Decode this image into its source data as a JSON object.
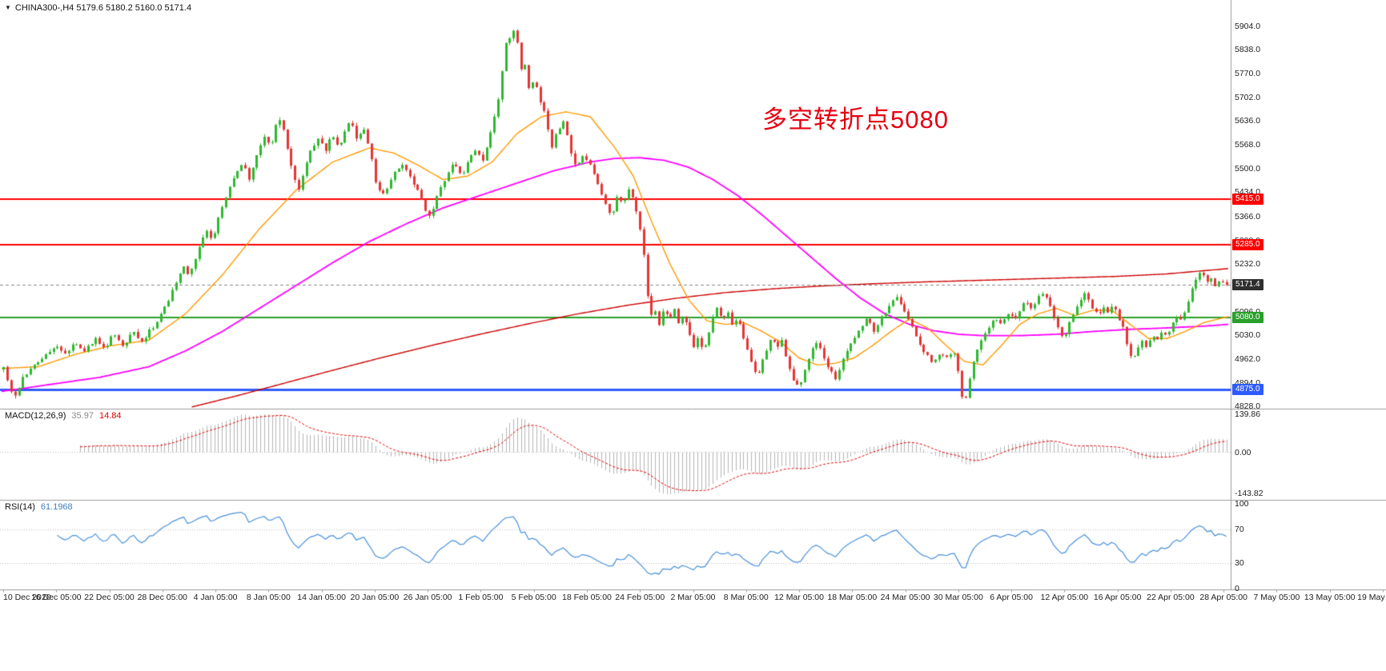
{
  "header": {
    "text": "CHINA300-,H4 5179.6 5180.2 5160.0 5171.4"
  },
  "annotation": {
    "text": "多空转折点5080",
    "color": "#e60012"
  },
  "chart_data": {
    "type": "candlestick",
    "symbol": "CHINA300-",
    "timeframe": "H4",
    "ohlc_display": {
      "open": 5179.6,
      "high": 5180.2,
      "low": 5160.0,
      "close": 5171.4
    },
    "price_axis": {
      "max": 5904.0,
      "min": 4828.0,
      "ticks": [
        "5904.0",
        "5838.0",
        "5770.0",
        "5702.0",
        "5636.0",
        "5568.0",
        "5500.0",
        "5434.0",
        "5366.0",
        "5298.0",
        "5232.0",
        "5164.0",
        "5096.0",
        "5030.0",
        "4962.0",
        "4894.0",
        "4828.0"
      ]
    },
    "time_axis": {
      "labels": [
        "10 Dec 2020",
        "16 Dec 05:00",
        "22 Dec 05:00",
        "28 Dec 05:00",
        "4 Jan 05:00",
        "8 Jan 05:00",
        "14 Jan 05:00",
        "20 Jan 05:00",
        "26 Jan 05:00",
        "1 Feb 05:00",
        "5 Feb 05:00",
        "18 Feb 05:00",
        "24 Feb 05:00",
        "2 Mar 05:00",
        "8 Mar 05:00",
        "12 Mar 05:00",
        "18 Mar 05:00",
        "24 Mar 05:00",
        "30 Mar 05:00",
        "6 Apr 05:00",
        "12 Apr 05:00",
        "16 Apr 05:00",
        "22 Apr 05:00",
        "28 Apr 05:00",
        "7 May 05:00",
        "13 May 05:00",
        "19 May 05:00"
      ]
    },
    "horizontal_lines": [
      {
        "price": 5415.0,
        "label": "5415.0",
        "color": "#ff0000",
        "width": 2
      },
      {
        "price": 5285.0,
        "label": "5285.0",
        "color": "#ff0000",
        "width": 2
      },
      {
        "price": 5080.0,
        "label": "5080.0",
        "color": "#2aa02a",
        "width": 2
      },
      {
        "price": 4875.0,
        "label": "4875.0",
        "color": "#2e5bff",
        "width": 3
      }
    ],
    "current_price": {
      "value": 5171.4,
      "label": "5171.4",
      "tag_color": "#2f2f2f"
    },
    "candle_colors": {
      "up": "#2eb82e",
      "down": "#e53535"
    },
    "bars": 320,
    "price_path": [
      [
        0.0,
        4935
      ],
      [
        0.005,
        4880
      ],
      [
        0.009,
        4850
      ],
      [
        0.015,
        4905
      ],
      [
        0.022,
        4930
      ],
      [
        0.03,
        4960
      ],
      [
        0.042,
        5000
      ],
      [
        0.05,
        4975
      ],
      [
        0.058,
        5010
      ],
      [
        0.066,
        4985
      ],
      [
        0.075,
        5020
      ],
      [
        0.082,
        4990
      ],
      [
        0.09,
        5035
      ],
      [
        0.098,
        5000
      ],
      [
        0.106,
        5040
      ],
      [
        0.113,
        5010
      ],
      [
        0.12,
        5045
      ],
      [
        0.124,
        5060
      ],
      [
        0.132,
        5110
      ],
      [
        0.14,
        5170
      ],
      [
        0.147,
        5230
      ],
      [
        0.152,
        5195
      ],
      [
        0.158,
        5260
      ],
      [
        0.165,
        5330
      ],
      [
        0.171,
        5300
      ],
      [
        0.178,
        5390
      ],
      [
        0.184,
        5440
      ],
      [
        0.19,
        5490
      ],
      [
        0.196,
        5520
      ],
      [
        0.201,
        5470
      ],
      [
        0.206,
        5530
      ],
      [
        0.21,
        5565
      ],
      [
        0.214,
        5600
      ],
      [
        0.218,
        5555
      ],
      [
        0.222,
        5620
      ],
      [
        0.227,
        5640
      ],
      [
        0.231,
        5580
      ],
      [
        0.236,
        5490
      ],
      [
        0.241,
        5440
      ],
      [
        0.246,
        5500
      ],
      [
        0.252,
        5560
      ],
      [
        0.258,
        5590
      ],
      [
        0.263,
        5545
      ],
      [
        0.268,
        5600
      ],
      [
        0.274,
        5555
      ],
      [
        0.279,
        5610
      ],
      [
        0.284,
        5640
      ],
      [
        0.289,
        5580
      ],
      [
        0.294,
        5615
      ],
      [
        0.299,
        5560
      ],
      [
        0.305,
        5450
      ],
      [
        0.311,
        5425
      ],
      [
        0.318,
        5480
      ],
      [
        0.325,
        5515
      ],
      [
        0.332,
        5480
      ],
      [
        0.34,
        5430
      ],
      [
        0.346,
        5375
      ],
      [
        0.349,
        5360
      ],
      [
        0.355,
        5430
      ],
      [
        0.362,
        5480
      ],
      [
        0.368,
        5525
      ],
      [
        0.374,
        5480
      ],
      [
        0.38,
        5520
      ],
      [
        0.386,
        5555
      ],
      [
        0.391,
        5520
      ],
      [
        0.396,
        5570
      ],
      [
        0.401,
        5640
      ],
      [
        0.405,
        5710
      ],
      [
        0.409,
        5810
      ],
      [
        0.412,
        5900
      ],
      [
        0.415,
        5855
      ],
      [
        0.418,
        5905
      ],
      [
        0.421,
        5835
      ],
      [
        0.424,
        5760
      ],
      [
        0.427,
        5800
      ],
      [
        0.43,
        5720
      ],
      [
        0.434,
        5765
      ],
      [
        0.438,
        5700
      ],
      [
        0.443,
        5650
      ],
      [
        0.448,
        5560
      ],
      [
        0.453,
        5610
      ],
      [
        0.458,
        5640
      ],
      [
        0.463,
        5560
      ],
      [
        0.468,
        5500
      ],
      [
        0.474,
        5545
      ],
      [
        0.48,
        5510
      ],
      [
        0.486,
        5455
      ],
      [
        0.492,
        5400
      ],
      [
        0.497,
        5365
      ],
      [
        0.502,
        5430
      ],
      [
        0.507,
        5400
      ],
      [
        0.512,
        5455
      ],
      [
        0.517,
        5380
      ],
      [
        0.522,
        5300
      ],
      [
        0.525,
        5210
      ],
      [
        0.527,
        5120
      ],
      [
        0.529,
        5085
      ],
      [
        0.532,
        5110
      ],
      [
        0.536,
        5060
      ],
      [
        0.54,
        5110
      ],
      [
        0.544,
        5070
      ],
      [
        0.548,
        5110
      ],
      [
        0.552,
        5060
      ],
      [
        0.556,
        5095
      ],
      [
        0.56,
        5040
      ],
      [
        0.564,
        4990
      ],
      [
        0.568,
        5030
      ],
      [
        0.572,
        4980
      ],
      [
        0.576,
        5030
      ],
      [
        0.58,
        5080
      ],
      [
        0.584,
        5110
      ],
      [
        0.588,
        5070
      ],
      [
        0.592,
        5100
      ],
      [
        0.596,
        5050
      ],
      [
        0.6,
        5080
      ],
      [
        0.604,
        5030
      ],
      [
        0.608,
        4990
      ],
      [
        0.612,
        4950
      ],
      [
        0.616,
        4910
      ],
      [
        0.62,
        4950
      ],
      [
        0.624,
        4990
      ],
      [
        0.628,
        5030
      ],
      [
        0.632,
        4990
      ],
      [
        0.636,
        5020
      ],
      [
        0.64,
        4960
      ],
      [
        0.645,
        4905
      ],
      [
        0.65,
        4880
      ],
      [
        0.655,
        4930
      ],
      [
        0.66,
        4980
      ],
      [
        0.665,
        5010
      ],
      [
        0.67,
        4970
      ],
      [
        0.675,
        4935
      ],
      [
        0.68,
        4905
      ],
      [
        0.685,
        4950
      ],
      [
        0.69,
        4990
      ],
      [
        0.695,
        5020
      ],
      [
        0.7,
        5045
      ],
      [
        0.706,
        5075
      ],
      [
        0.712,
        5040
      ],
      [
        0.718,
        5080
      ],
      [
        0.724,
        5110
      ],
      [
        0.73,
        5140
      ],
      [
        0.736,
        5100
      ],
      [
        0.742,
        5060
      ],
      [
        0.748,
        5010
      ],
      [
        0.754,
        4975
      ],
      [
        0.76,
        4950
      ],
      [
        0.766,
        4985
      ],
      [
        0.772,
        4960
      ],
      [
        0.776,
        4990
      ],
      [
        0.78,
        4940
      ],
      [
        0.783,
        4860
      ],
      [
        0.786,
        4840
      ],
      [
        0.789,
        4890
      ],
      [
        0.793,
        4950
      ],
      [
        0.797,
        5000
      ],
      [
        0.801,
        5020
      ],
      [
        0.806,
        5055
      ],
      [
        0.811,
        5080
      ],
      [
        0.816,
        5060
      ],
      [
        0.821,
        5090
      ],
      [
        0.826,
        5075
      ],
      [
        0.831,
        5100
      ],
      [
        0.836,
        5130
      ],
      [
        0.841,
        5100
      ],
      [
        0.846,
        5140
      ],
      [
        0.851,
        5155
      ],
      [
        0.855,
        5120
      ],
      [
        0.859,
        5080
      ],
      [
        0.863,
        5040
      ],
      [
        0.867,
        5025
      ],
      [
        0.871,
        5060
      ],
      [
        0.875,
        5095
      ],
      [
        0.88,
        5130
      ],
      [
        0.885,
        5150
      ],
      [
        0.89,
        5110
      ],
      [
        0.895,
        5085
      ],
      [
        0.899,
        5115
      ],
      [
        0.903,
        5095
      ],
      [
        0.907,
        5120
      ],
      [
        0.911,
        5085
      ],
      [
        0.915,
        5055
      ],
      [
        0.919,
        5000
      ],
      [
        0.923,
        4960
      ],
      [
        0.927,
        4985
      ],
      [
        0.931,
        5015
      ],
      [
        0.935,
        4995
      ],
      [
        0.939,
        5030
      ],
      [
        0.943,
        5010
      ],
      [
        0.947,
        5040
      ],
      [
        0.951,
        5025
      ],
      [
        0.955,
        5055
      ],
      [
        0.959,
        5080
      ],
      [
        0.963,
        5075
      ],
      [
        0.967,
        5110
      ],
      [
        0.971,
        5150
      ],
      [
        0.975,
        5190
      ],
      [
        0.979,
        5215
      ],
      [
        0.982,
        5195
      ],
      [
        0.985,
        5175
      ],
      [
        0.988,
        5190
      ],
      [
        0.991,
        5165
      ],
      [
        0.994,
        5180
      ],
      [
        0.997,
        5175
      ],
      [
        1.0,
        5171
      ]
    ],
    "moving_averages": [
      {
        "name": "ma-slow",
        "color": "#cc0000",
        "width": 1.4,
        "path": [
          [
            0.155,
            4826
          ],
          [
            0.19,
            4856
          ],
          [
            0.23,
            4893
          ],
          [
            0.27,
            4930
          ],
          [
            0.31,
            4966
          ],
          [
            0.35,
            5000
          ],
          [
            0.39,
            5032
          ],
          [
            0.43,
            5062
          ],
          [
            0.47,
            5090
          ],
          [
            0.51,
            5114
          ],
          [
            0.55,
            5134
          ],
          [
            0.59,
            5150
          ],
          [
            0.63,
            5161
          ],
          [
            0.67,
            5169
          ],
          [
            0.71,
            5175
          ],
          [
            0.75,
            5180
          ],
          [
            0.79,
            5184
          ],
          [
            0.83,
            5188
          ],
          [
            0.87,
            5192
          ],
          [
            0.91,
            5196
          ],
          [
            0.95,
            5203
          ],
          [
            1.0,
            5218
          ]
        ]
      },
      {
        "name": "ma-medium",
        "color": "#ff00ff",
        "width": 1.8,
        "path": [
          [
            0.0,
            4870
          ],
          [
            0.04,
            4890
          ],
          [
            0.08,
            4910
          ],
          [
            0.12,
            4940
          ],
          [
            0.15,
            4985
          ],
          [
            0.18,
            5040
          ],
          [
            0.21,
            5105
          ],
          [
            0.24,
            5170
          ],
          [
            0.27,
            5235
          ],
          [
            0.3,
            5295
          ],
          [
            0.33,
            5345
          ],
          [
            0.36,
            5390
          ],
          [
            0.39,
            5425
          ],
          [
            0.42,
            5460
          ],
          [
            0.45,
            5495
          ],
          [
            0.48,
            5520
          ],
          [
            0.5,
            5530
          ],
          [
            0.52,
            5532
          ],
          [
            0.54,
            5525
          ],
          [
            0.56,
            5505
          ],
          [
            0.58,
            5470
          ],
          [
            0.6,
            5425
          ],
          [
            0.62,
            5370
          ],
          [
            0.64,
            5310
          ],
          [
            0.66,
            5250
          ],
          [
            0.68,
            5190
          ],
          [
            0.7,
            5135
          ],
          [
            0.72,
            5090
          ],
          [
            0.74,
            5060
          ],
          [
            0.76,
            5042
          ],
          [
            0.78,
            5032
          ],
          [
            0.8,
            5028
          ],
          [
            0.83,
            5028
          ],
          [
            0.86,
            5032
          ],
          [
            0.89,
            5040
          ],
          [
            0.92,
            5046
          ],
          [
            0.95,
            5050
          ],
          [
            0.98,
            5055
          ],
          [
            1.0,
            5060
          ]
        ]
      },
      {
        "name": "ma-fast",
        "color": "#ff9900",
        "width": 1.4,
        "path": [
          [
            0.0,
            4935
          ],
          [
            0.03,
            4940
          ],
          [
            0.06,
            4975
          ],
          [
            0.09,
            5000
          ],
          [
            0.12,
            5015
          ],
          [
            0.15,
            5090
          ],
          [
            0.18,
            5200
          ],
          [
            0.21,
            5330
          ],
          [
            0.24,
            5440
          ],
          [
            0.27,
            5520
          ],
          [
            0.3,
            5560
          ],
          [
            0.32,
            5545
          ],
          [
            0.34,
            5510
          ],
          [
            0.36,
            5470
          ],
          [
            0.38,
            5480
          ],
          [
            0.4,
            5520
          ],
          [
            0.42,
            5600
          ],
          [
            0.44,
            5648
          ],
          [
            0.46,
            5662
          ],
          [
            0.48,
            5648
          ],
          [
            0.5,
            5560
          ],
          [
            0.515,
            5480
          ],
          [
            0.53,
            5350
          ],
          [
            0.545,
            5230
          ],
          [
            0.56,
            5130
          ],
          [
            0.575,
            5070
          ],
          [
            0.59,
            5060
          ],
          [
            0.605,
            5065
          ],
          [
            0.62,
            5040
          ],
          [
            0.635,
            5010
          ],
          [
            0.65,
            4965
          ],
          [
            0.665,
            4945
          ],
          [
            0.68,
            4950
          ],
          [
            0.695,
            4965
          ],
          [
            0.71,
            5000
          ],
          [
            0.725,
            5040
          ],
          [
            0.74,
            5075
          ],
          [
            0.755,
            5050
          ],
          [
            0.77,
            5000
          ],
          [
            0.785,
            4955
          ],
          [
            0.8,
            4945
          ],
          [
            0.815,
            5000
          ],
          [
            0.83,
            5060
          ],
          [
            0.845,
            5090
          ],
          [
            0.86,
            5105
          ],
          [
            0.875,
            5085
          ],
          [
            0.89,
            5100
          ],
          [
            0.905,
            5100
          ],
          [
            0.92,
            5060
          ],
          [
            0.935,
            5020
          ],
          [
            0.95,
            5020
          ],
          [
            0.965,
            5040
          ],
          [
            0.98,
            5065
          ],
          [
            1.0,
            5082
          ]
        ]
      }
    ],
    "indicators": {
      "macd": {
        "label": "MACD(12,26,9)",
        "main_value": "35.97",
        "signal_value": "14.84",
        "params": [
          12,
          26,
          9
        ],
        "axis_labels": [
          "139.86",
          "0.00",
          "-143.82"
        ],
        "histogram_color": "#b5b5b5",
        "signal_color": "#e00000"
      },
      "rsi": {
        "label": "RSI(14)",
        "value": "61.1968",
        "period": 14,
        "axis_labels": [
          "100",
          "70",
          "30",
          "0"
        ],
        "levels": [
          70,
          30
        ],
        "line_color": "#4a90d9"
      }
    }
  }
}
